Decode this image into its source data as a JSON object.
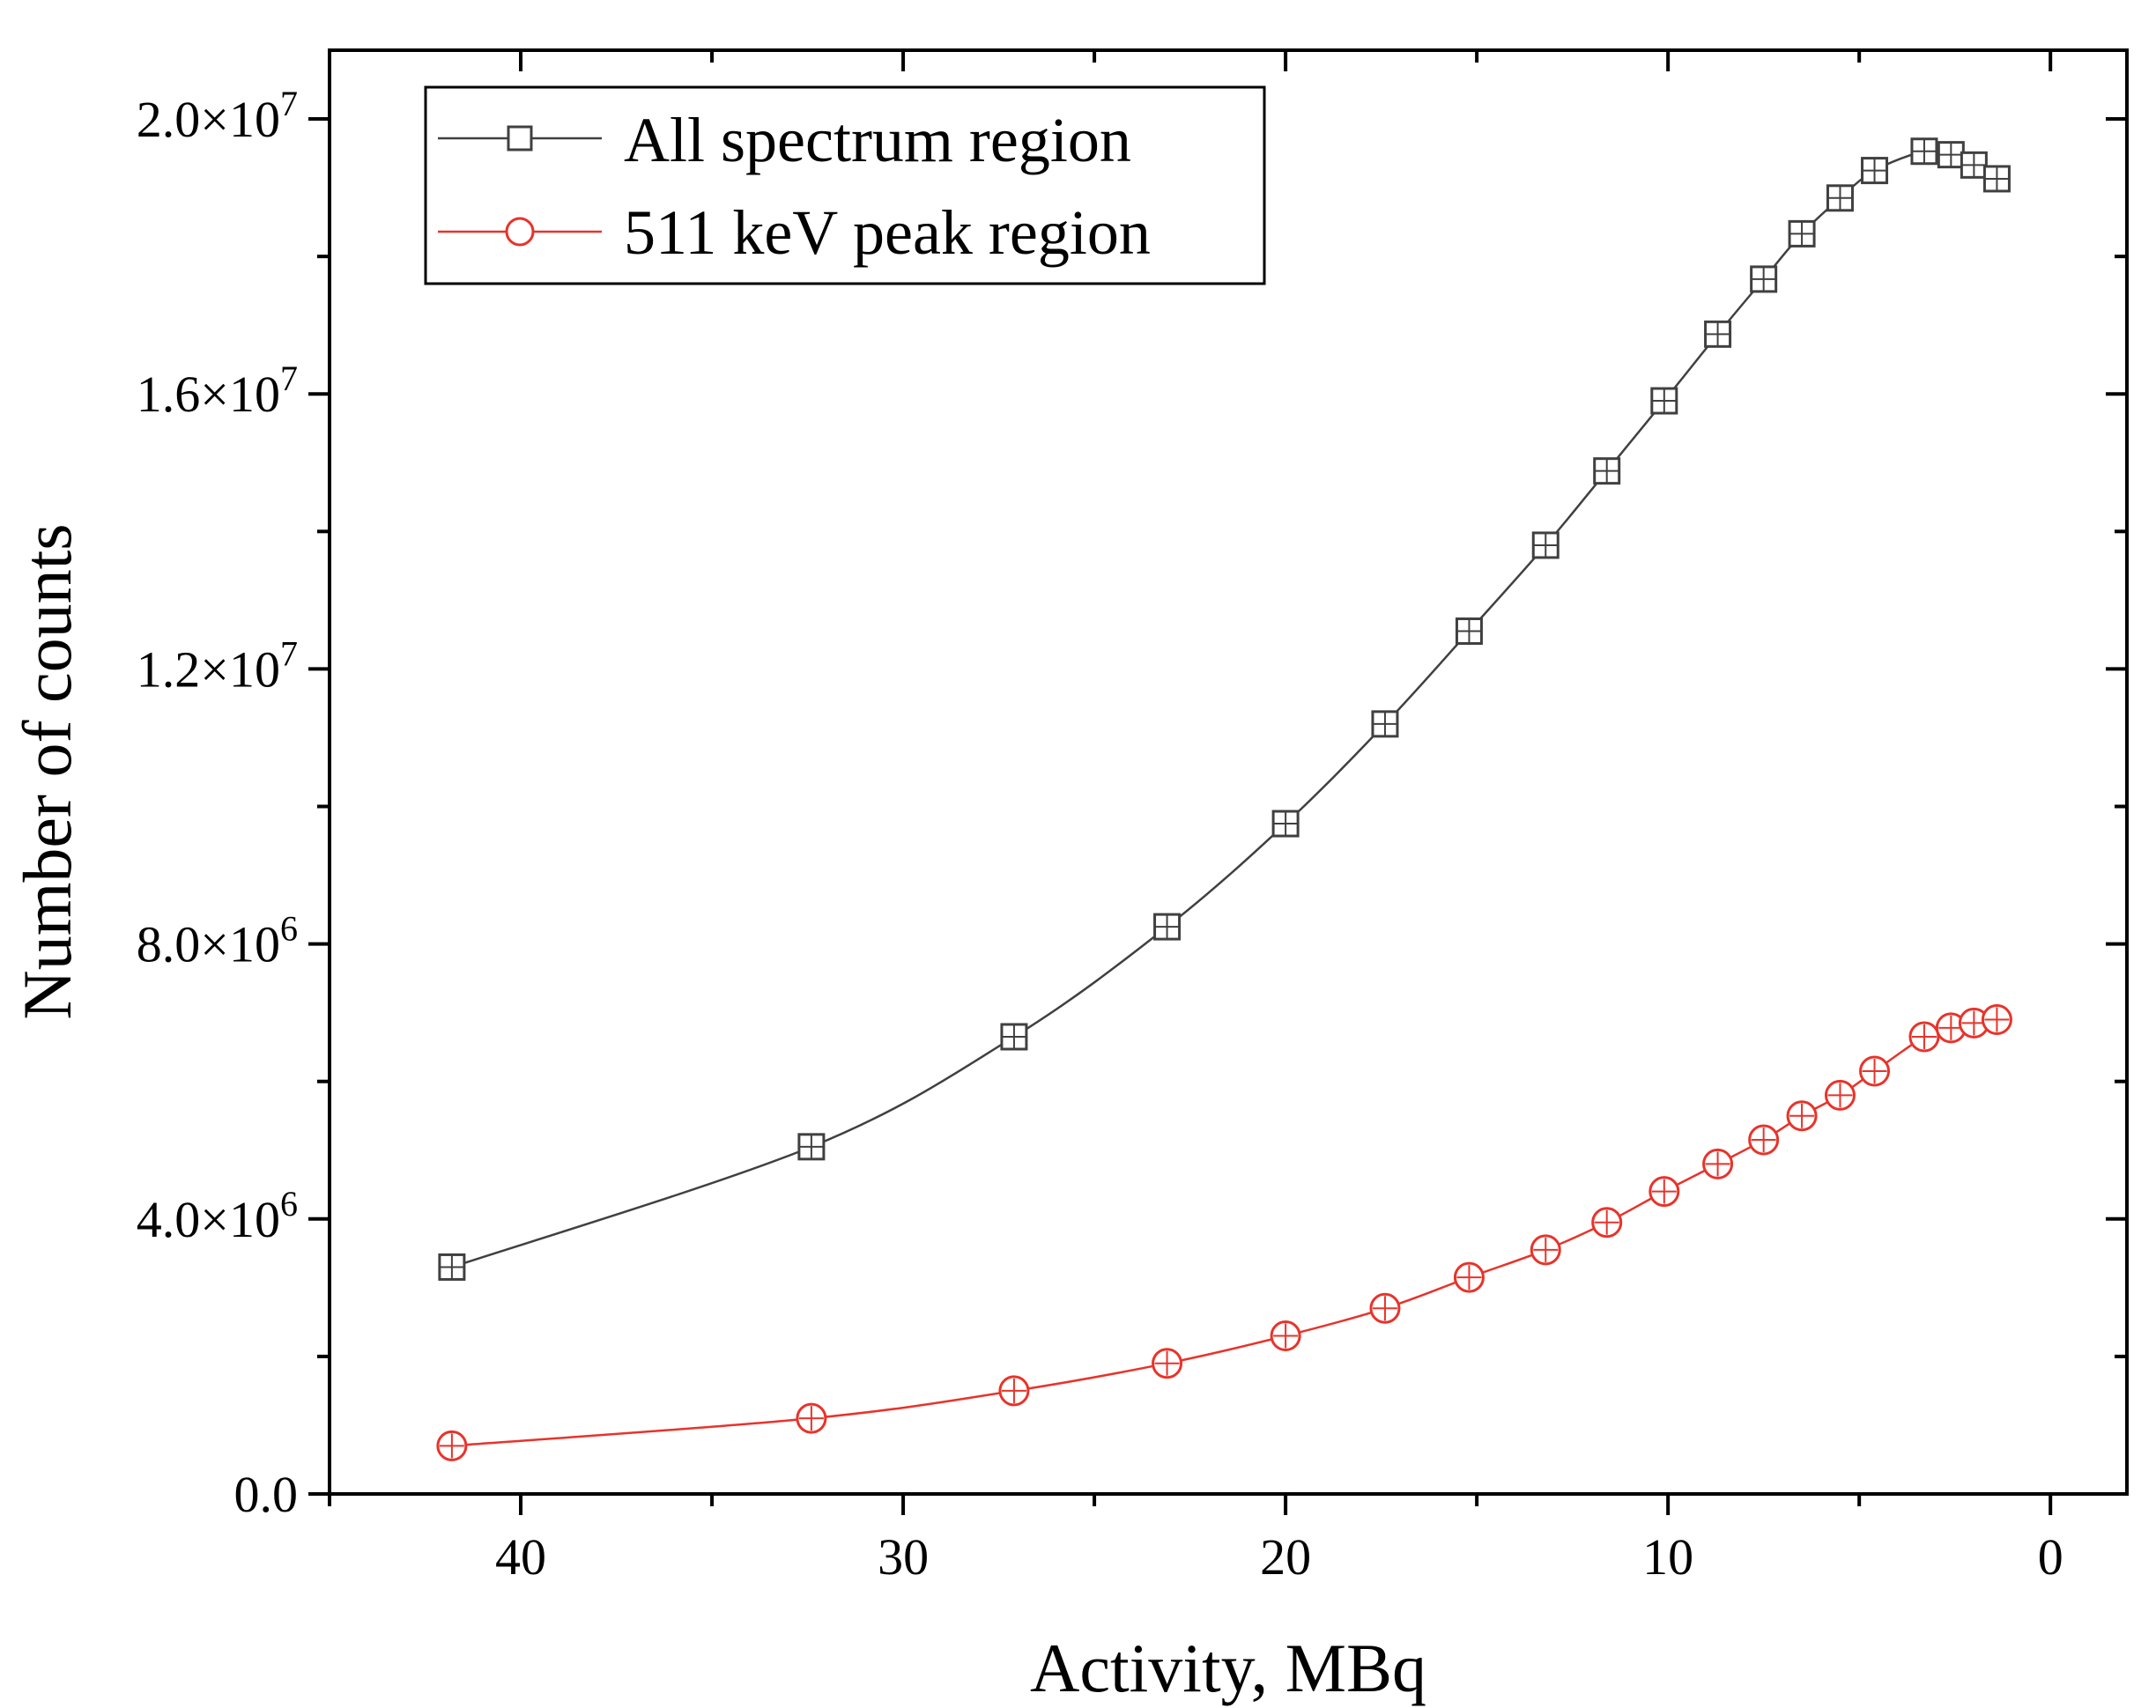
{
  "chart_data": {
    "type": "line",
    "title": "",
    "xlabel": "Activity, MBq",
    "ylabel": "Number of counts",
    "xlim": [
      45,
      -2
    ],
    "x_reversed": true,
    "ylim": [
      0,
      21000000
    ],
    "grid": false,
    "legend_position": "top-left",
    "x_ticks": [
      40,
      30,
      20,
      10,
      0
    ],
    "x_tick_labels": [
      "40",
      "30",
      "20",
      "10",
      "0"
    ],
    "y_ticks": [
      0,
      4000000,
      8000000,
      12000000,
      16000000,
      20000000
    ],
    "y_tick_labels": [
      {
        "mant": "0.0",
        "exp": ""
      },
      {
        "mant": "4.0×10",
        "exp": "6"
      },
      {
        "mant": "8.0×10",
        "exp": "6"
      },
      {
        "mant": "1.2×10",
        "exp": "7"
      },
      {
        "mant": "1.6×10",
        "exp": "7"
      },
      {
        "mant": "2.0×10",
        "exp": "7"
      }
    ],
    "series": [
      {
        "name": "All spectrum region",
        "color": "#404040",
        "marker": "square",
        "x": [
          41.8,
          32.4,
          27.1,
          23.1,
          20.0,
          17.4,
          15.2,
          13.2,
          11.6,
          10.1,
          8.7,
          7.5,
          6.5,
          5.5,
          4.6,
          3.3,
          2.6,
          2.0,
          1.4
        ],
        "values": [
          3300000,
          5050000,
          6650000,
          8250000,
          9750000,
          11200000,
          12550000,
          13800000,
          14880000,
          15900000,
          16870000,
          17670000,
          18330000,
          18850000,
          19250000,
          19530000,
          19480000,
          19330000,
          19130000
        ]
      },
      {
        "name": "511 keV peak region",
        "color": "#e8332a",
        "marker": "circle",
        "x": [
          41.8,
          32.4,
          27.1,
          23.1,
          20.0,
          17.4,
          15.2,
          13.2,
          11.6,
          10.1,
          8.7,
          7.5,
          6.5,
          5.5,
          4.6,
          3.3,
          2.6,
          2.0,
          1.4
        ],
        "values": [
          700000,
          1100000,
          1500000,
          1900000,
          2300000,
          2700000,
          3150000,
          3550000,
          3950000,
          4400000,
          4800000,
          5150000,
          5500000,
          5800000,
          6150000,
          6650000,
          6780000,
          6850000,
          6900000
        ]
      }
    ]
  }
}
